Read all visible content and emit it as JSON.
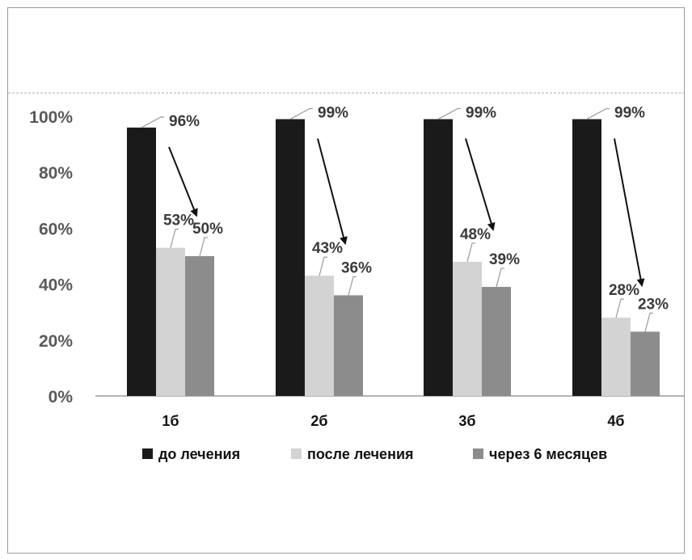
{
  "chart_data": {
    "type": "bar",
    "categories": [
      "1б",
      "2б",
      "3б",
      "4б"
    ],
    "series": [
      {
        "name": "до лечения",
        "color": "#1a1a1a",
        "values": [
          96,
          99,
          99,
          99
        ],
        "labels": [
          "96%",
          "99%",
          "99%",
          "99%"
        ]
      },
      {
        "name": "после лечения",
        "color": "#d3d3d3",
        "values": [
          53,
          43,
          48,
          28
        ],
        "labels": [
          "53%",
          "43%",
          "48%",
          "28%"
        ]
      },
      {
        "name": "через 6 месяцев",
        "color": "#8c8c8c",
        "values": [
          50,
          36,
          39,
          23
        ],
        "labels": [
          "50%",
          "36%",
          "39%",
          "23%"
        ]
      }
    ],
    "yticks": [
      "0%",
      "20%",
      "40%",
      "60%",
      "80%",
      "100%"
    ],
    "ylim": [
      0,
      100
    ],
    "grid": false,
    "legend_position": "bottom",
    "annotations": "arrows from pre-treatment bar to post-treatment bar in each group"
  }
}
